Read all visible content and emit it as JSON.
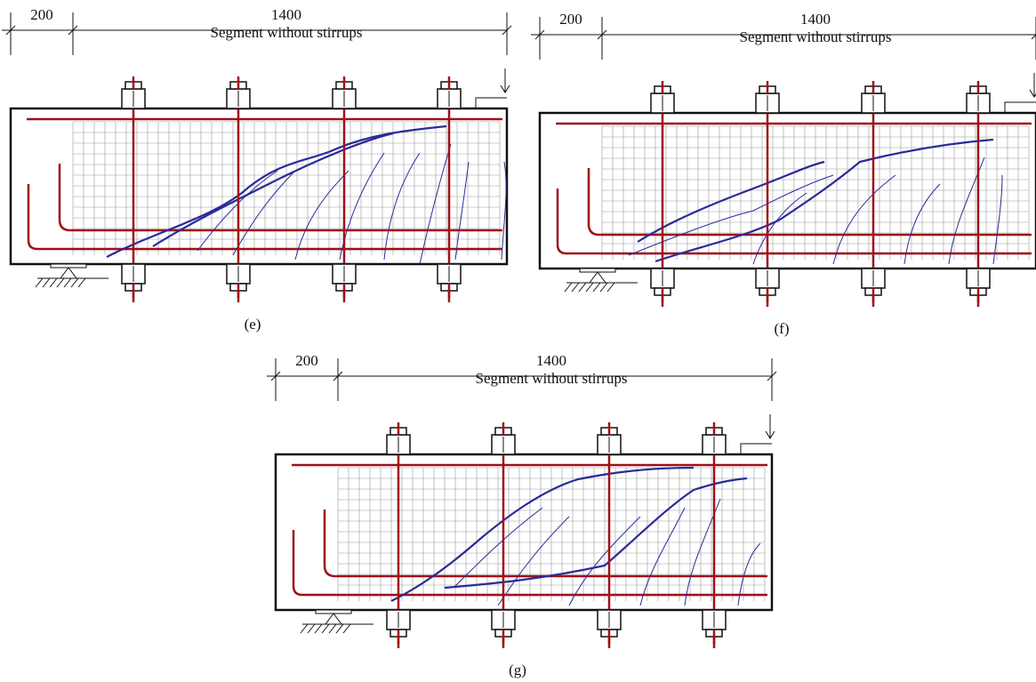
{
  "panels": [
    {
      "dim_left": "200",
      "dim_right": "1400",
      "segment_label": "Segment without stirrups",
      "caption": "(e)"
    },
    {
      "dim_left": "200",
      "dim_right": "1400",
      "segment_label": "Segment without stirrups",
      "caption": "(f)"
    },
    {
      "dim_left": "200",
      "dim_right": "1400",
      "segment_label": "Segment without stirrups",
      "caption": "(g)"
    }
  ]
}
